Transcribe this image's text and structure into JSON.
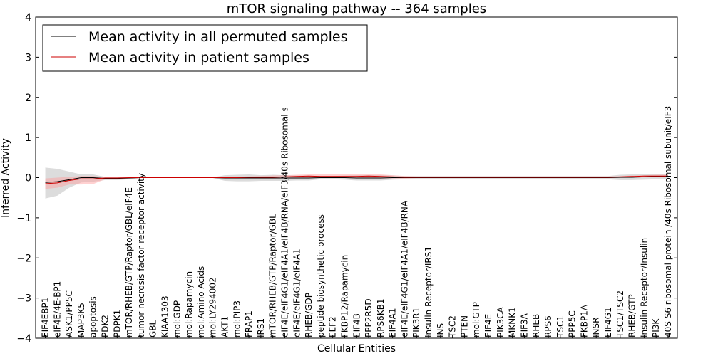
{
  "chart_data": {
    "type": "line",
    "title": "mTOR signaling pathway -- 364 samples",
    "xlabel": "Cellular Entities",
    "ylabel": "Inferred Activity",
    "ylim": [
      -4,
      4
    ],
    "yticks": [
      -4,
      -3,
      -2,
      -1,
      0,
      1,
      2,
      3,
      4
    ],
    "ytick_labels": [
      "−4",
      "−3",
      "−2",
      "−1",
      "0",
      "1",
      "2",
      "3",
      "4"
    ],
    "legend_position": "top-left",
    "categories": [
      "EIF4EBP1",
      "eIF4E/4E-BP1",
      "ASK1/PP5C",
      "MAP3K5",
      "apoptosis",
      "PDK2",
      "PDPK1",
      "mTOR/RHEB/GTP/Raptor/GBL/eIF4E",
      "tumor necrosis factor receptor activity",
      "GBL",
      "KIAA1303",
      "mol:GDP",
      "mol:Rapamycin",
      "mol:Amino Acids",
      "mol:LY294002",
      "AKT1",
      "mol:PIP3",
      "FRAP1",
      "IRS1",
      "mTOR/RHEB/GTP/Raptor/GBL",
      "eIF4E/eIF4G1/eIF4A1/eIF4B/RNA/eIF3/40s Ribosomal s",
      "eIF4E/eIF4G1/eIF4A1",
      "RHEB/GDP",
      "peptide biosynthetic process",
      "EEF2",
      "FKBP12/Rapamycin",
      "EIF4B",
      "PPP2R5D",
      "RPS6KB1",
      "EIF4A1",
      "eIF4E/eIF4G1/eIF4A1/eIF4B/RNA",
      "PIK3R1",
      "Insulin Receptor/IRS1",
      "INS",
      "TSC2",
      "PTEN",
      "mol:GTP",
      "EIF4E",
      "PIK3CA",
      "MKNK1",
      "EIF3A",
      "RHEB",
      "RPS6",
      "TSC1",
      "PPP5C",
      "FKBP1A",
      "INSR",
      "EIF4G1",
      "TSC1/TSC2",
      "RHEB/GTP",
      "Insulin Receptor/Insulin",
      "PI3K",
      "40S S6 ribosomal protein /40s Ribosomal subunit/eIF3"
    ],
    "series": [
      {
        "name": "Mean activity in all permuted samples",
        "color": "#000000",
        "band_color": "#9a9a9a",
        "values": [
          -0.12,
          -0.1,
          -0.05,
          0.0,
          0.0,
          -0.02,
          -0.02,
          -0.01,
          0,
          0,
          0,
          0,
          0,
          0,
          0,
          -0.01,
          -0.01,
          -0.01,
          -0.01,
          -0.01,
          -0.01,
          -0.01,
          -0.01,
          0,
          0,
          0,
          -0.01,
          -0.01,
          -0.01,
          0,
          0,
          0,
          0,
          0,
          0,
          0,
          0,
          0,
          0,
          0,
          0,
          0,
          0,
          0,
          0,
          0,
          0,
          0,
          0.01,
          0.01,
          0.02,
          0.03,
          0.03
        ],
        "band_upper": [
          0.25,
          0.22,
          0.15,
          0.08,
          0.08,
          0.02,
          0.02,
          0.02,
          0.01,
          0.01,
          0.01,
          0.01,
          0.01,
          0.01,
          0.01,
          0.06,
          0.07,
          0.08,
          0.06,
          0.07,
          0.06,
          0.05,
          0.05,
          0.04,
          0.04,
          0.05,
          0.06,
          0.06,
          0.06,
          0.05,
          0.04,
          0.04,
          0.04,
          0.04,
          0.04,
          0.04,
          0.04,
          0.04,
          0.04,
          0.04,
          0.04,
          0.04,
          0.04,
          0.04,
          0.04,
          0.04,
          0.04,
          0.04,
          0.07,
          0.08,
          0.08,
          0.09,
          0.09
        ],
        "band_lower": [
          -0.52,
          -0.45,
          -0.25,
          -0.12,
          -0.1,
          -0.06,
          -0.06,
          -0.04,
          -0.01,
          -0.01,
          -0.01,
          -0.01,
          -0.01,
          -0.01,
          -0.01,
          -0.08,
          -0.09,
          -0.09,
          -0.08,
          -0.08,
          -0.08,
          -0.07,
          -0.07,
          -0.04,
          -0.04,
          -0.05,
          -0.07,
          -0.07,
          -0.07,
          -0.05,
          -0.04,
          -0.04,
          -0.04,
          -0.04,
          -0.04,
          -0.04,
          -0.04,
          -0.04,
          -0.04,
          -0.04,
          -0.04,
          -0.04,
          -0.04,
          -0.04,
          -0.04,
          -0.04,
          -0.04,
          -0.04,
          -0.06,
          -0.06,
          -0.05,
          -0.04,
          -0.04
        ]
      },
      {
        "name": "Mean activity in patient samples",
        "color": "#cc0000",
        "band_color": "#ff9999",
        "values": [
          -0.15,
          -0.13,
          -0.07,
          -0.03,
          -0.03,
          -0.01,
          -0.01,
          0,
          0,
          0,
          0,
          0,
          0,
          0,
          0,
          0,
          0,
          0.01,
          0.01,
          0.01,
          0.02,
          0.03,
          0.04,
          0.03,
          0.03,
          0.03,
          0.03,
          0.04,
          0.03,
          0.02,
          0.01,
          0.01,
          0.01,
          0.01,
          0.01,
          0.01,
          0.01,
          0.01,
          0.01,
          0.01,
          0.01,
          0.01,
          0.01,
          0.01,
          0.01,
          0.01,
          0.01,
          0.01,
          0.02,
          0.03,
          0.04,
          0.04,
          0.04
        ],
        "band_upper": [
          -0.02,
          0.0,
          0.02,
          0.04,
          0.04,
          0.01,
          0.01,
          0.01,
          0.01,
          0.01,
          0.01,
          0.01,
          0.01,
          0.01,
          0.01,
          0.01,
          0.02,
          0.03,
          0.04,
          0.05,
          0.06,
          0.07,
          0.08,
          0.08,
          0.08,
          0.08,
          0.09,
          0.09,
          0.08,
          0.06,
          0.04,
          0.03,
          0.03,
          0.03,
          0.03,
          0.03,
          0.03,
          0.03,
          0.03,
          0.03,
          0.03,
          0.03,
          0.03,
          0.03,
          0.03,
          0.03,
          0.03,
          0.03,
          0.04,
          0.05,
          0.06,
          0.07,
          0.07
        ],
        "band_lower": [
          -0.28,
          -0.25,
          -0.17,
          -0.17,
          -0.16,
          -0.04,
          -0.04,
          -0.02,
          -0.01,
          -0.01,
          -0.01,
          -0.01,
          -0.01,
          -0.01,
          -0.01,
          -0.01,
          -0.02,
          -0.01,
          -0.02,
          -0.02,
          -0.02,
          -0.02,
          0.0,
          -0.01,
          -0.01,
          -0.01,
          -0.02,
          -0.01,
          -0.02,
          -0.02,
          -0.02,
          -0.01,
          -0.01,
          -0.01,
          -0.01,
          -0.01,
          -0.01,
          -0.01,
          -0.01,
          -0.01,
          -0.01,
          -0.01,
          -0.01,
          -0.01,
          -0.01,
          -0.01,
          -0.01,
          -0.01,
          -0.01,
          0.0,
          0.01,
          0.01,
          0.01
        ]
      }
    ]
  }
}
